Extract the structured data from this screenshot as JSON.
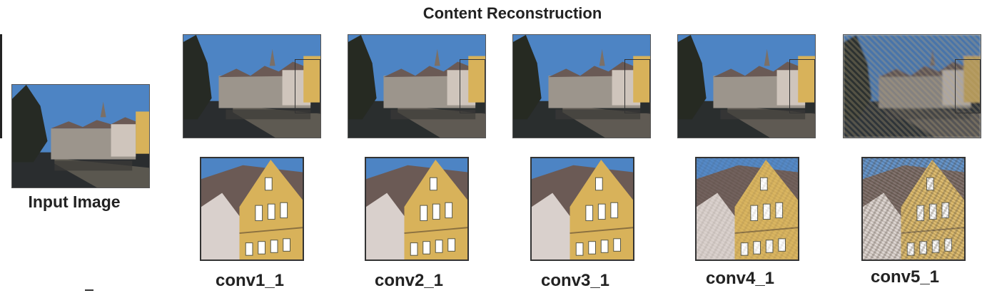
{
  "title": "Content Reconstruction",
  "input_label": "Input Image",
  "layers": [
    {
      "name": "conv1_1",
      "degradation": 0.0
    },
    {
      "name": "conv2_1",
      "degradation": 0.05
    },
    {
      "name": "conv3_1",
      "degradation": 0.1
    },
    {
      "name": "conv4_1",
      "degradation": 0.25
    },
    {
      "name": "conv5_1",
      "degradation": 0.8
    }
  ],
  "colors": {
    "sky": "#4d84c4",
    "water": "#2a2d2f",
    "house_yellow": "#d8b25a",
    "roof": "#6b5a55",
    "house_white": "#cfc5bc"
  }
}
